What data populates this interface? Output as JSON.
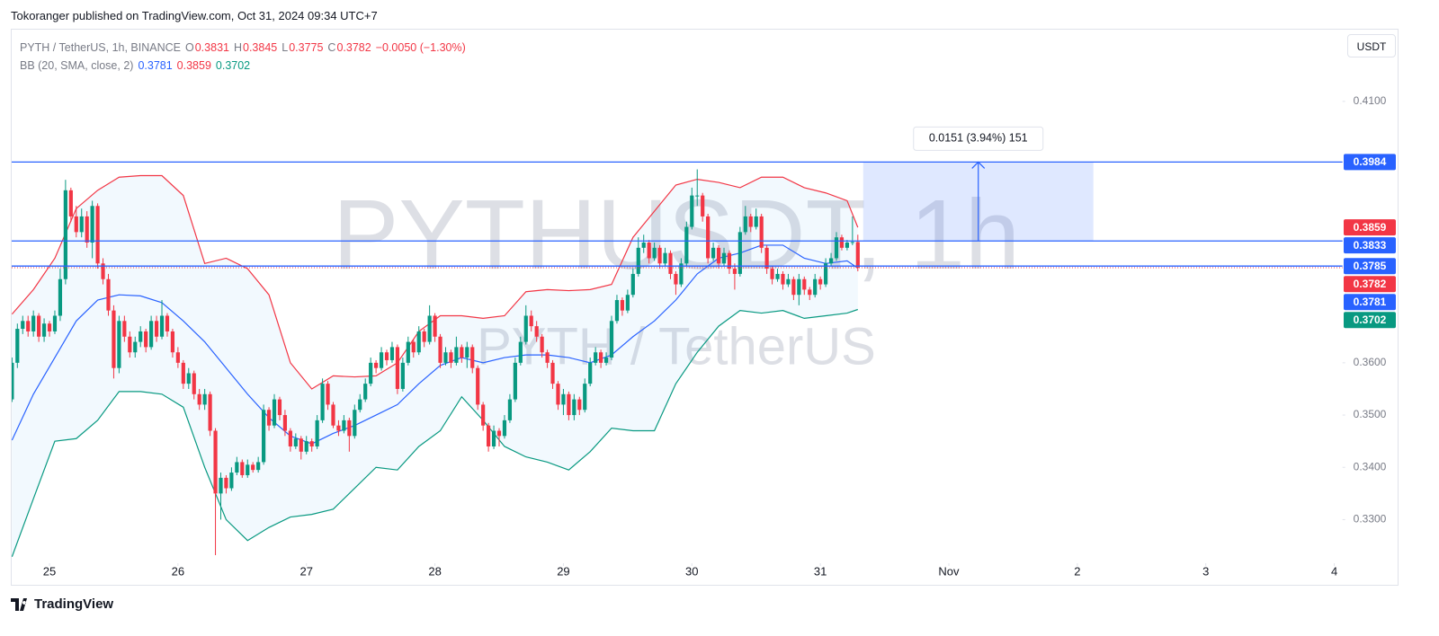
{
  "header": {
    "text": "Tokoranger published on TradingView.com, Oct 31, 2024 09:34 UTC+7"
  },
  "footer": {
    "brand": "TradingView"
  },
  "chart_data": {
    "type": "candlestick",
    "title": "PYTH / TetherUS, 1h, BINANCE",
    "watermark": "PYTHUSDT, 1h",
    "watermark_sub": "PYTH / TetherUS",
    "ohlc_labels": [
      "O",
      "H",
      "L",
      "C"
    ],
    "change": "−0.0050 (−1.30%)",
    "currency": "USDT",
    "up_color": "#089981",
    "down_color": "#f23645",
    "xlim": [
      -7.06,
      241.2
    ],
    "ylim": [
      0.322,
      0.4239
    ],
    "xticks": [
      {
        "value": 0,
        "label": "25"
      },
      {
        "value": 24,
        "label": "26"
      },
      {
        "value": 48,
        "label": "27"
      },
      {
        "value": 72,
        "label": "28"
      },
      {
        "value": 96,
        "label": "29"
      },
      {
        "value": 120,
        "label": "30"
      },
      {
        "value": 144,
        "label": "31"
      },
      {
        "value": 168,
        "label": "Nov"
      },
      {
        "value": 192,
        "label": "2"
      },
      {
        "value": 216,
        "label": "3"
      },
      {
        "value": 240,
        "label": "4"
      }
    ],
    "yticks": [
      {
        "value": 0.41,
        "label": "0.4100"
      },
      {
        "value": 0.36,
        "label": "0.3600"
      },
      {
        "value": 0.35,
        "label": "0.3500"
      },
      {
        "value": 0.34,
        "label": "0.3400"
      },
      {
        "value": 0.33,
        "label": "0.3300"
      }
    ],
    "x": [
      -7,
      -6,
      -5,
      -4,
      -3,
      -2,
      -1,
      0,
      1,
      2,
      3,
      4,
      5,
      6,
      7,
      8,
      9,
      10,
      11,
      12,
      13,
      14,
      15,
      16,
      17,
      18,
      19,
      20,
      21,
      22,
      23,
      24,
      25,
      26,
      27,
      28,
      29,
      30,
      31,
      32,
      33,
      34,
      35,
      36,
      37,
      38,
      39,
      40,
      41,
      42,
      43,
      44,
      45,
      46,
      47,
      48,
      49,
      50,
      51,
      52,
      53,
      54,
      55,
      56,
      57,
      58,
      59,
      60,
      61,
      62,
      63,
      64,
      65,
      66,
      67,
      68,
      69,
      70,
      71,
      72,
      73,
      74,
      75,
      76,
      77,
      78,
      79,
      80,
      81,
      82,
      83,
      84,
      85,
      86,
      87,
      88,
      89,
      90,
      91,
      92,
      93,
      94,
      95,
      96,
      97,
      98,
      99,
      100,
      101,
      102,
      103,
      104,
      105,
      106,
      107,
      108,
      109,
      110,
      111,
      112,
      113,
      114,
      115,
      116,
      117,
      118,
      119,
      120,
      121,
      122,
      123,
      124,
      125,
      126,
      127,
      128,
      129,
      130,
      131,
      132,
      133,
      134,
      135,
      136,
      137,
      138,
      139,
      140,
      141,
      142,
      143,
      144,
      145,
      146,
      147,
      148,
      149,
      150,
      151
    ],
    "candles": [
      [
        0.353,
        0.361,
        0.3525,
        0.36
      ],
      [
        0.36,
        0.3675,
        0.359,
        0.3665
      ],
      [
        0.3665,
        0.369,
        0.3655,
        0.368
      ],
      [
        0.368,
        0.369,
        0.365,
        0.366
      ],
      [
        0.366,
        0.37,
        0.365,
        0.369
      ],
      [
        0.369,
        0.3695,
        0.364,
        0.365
      ],
      [
        0.365,
        0.3685,
        0.364,
        0.3675
      ],
      [
        0.3675,
        0.368,
        0.365,
        0.366
      ],
      [
        0.366,
        0.37,
        0.3655,
        0.369
      ],
      [
        0.369,
        0.378,
        0.368,
        0.376
      ],
      [
        0.376,
        0.395,
        0.375,
        0.393
      ],
      [
        0.393,
        0.3935,
        0.387,
        0.388
      ],
      [
        0.388,
        0.39,
        0.384,
        0.385
      ],
      [
        0.385,
        0.3895,
        0.384,
        0.388
      ],
      [
        0.388,
        0.389,
        0.382,
        0.383
      ],
      [
        0.383,
        0.391,
        0.38,
        0.39
      ],
      [
        0.39,
        0.3905,
        0.378,
        0.379
      ],
      [
        0.379,
        0.38,
        0.375,
        0.376
      ],
      [
        0.376,
        0.377,
        0.369,
        0.37
      ],
      [
        0.37,
        0.371,
        0.357,
        0.359
      ],
      [
        0.359,
        0.369,
        0.358,
        0.368
      ],
      [
        0.368,
        0.369,
        0.364,
        0.365
      ],
      [
        0.365,
        0.366,
        0.361,
        0.362
      ],
      [
        0.362,
        0.365,
        0.361,
        0.364
      ],
      [
        0.364,
        0.367,
        0.363,
        0.366
      ],
      [
        0.366,
        0.3665,
        0.362,
        0.363
      ],
      [
        0.363,
        0.369,
        0.3625,
        0.368
      ],
      [
        0.368,
        0.369,
        0.364,
        0.365
      ],
      [
        0.365,
        0.372,
        0.3645,
        0.369
      ],
      [
        0.369,
        0.3695,
        0.365,
        0.366
      ],
      [
        0.366,
        0.3665,
        0.361,
        0.362
      ],
      [
        0.362,
        0.363,
        0.359,
        0.36
      ],
      [
        0.36,
        0.3605,
        0.355,
        0.356
      ],
      [
        0.356,
        0.359,
        0.355,
        0.358
      ],
      [
        0.358,
        0.3585,
        0.353,
        0.354
      ],
      [
        0.354,
        0.355,
        0.351,
        0.352
      ],
      [
        0.352,
        0.355,
        0.351,
        0.354
      ],
      [
        0.354,
        0.3545,
        0.346,
        0.347
      ],
      [
        0.347,
        0.3475,
        0.3232,
        0.335
      ],
      [
        0.335,
        0.339,
        0.33,
        0.338
      ],
      [
        0.338,
        0.3385,
        0.335,
        0.336
      ],
      [
        0.336,
        0.34,
        0.3355,
        0.339
      ],
      [
        0.339,
        0.342,
        0.3385,
        0.341
      ],
      [
        0.341,
        0.3415,
        0.338,
        0.3385
      ],
      [
        0.3385,
        0.3415,
        0.338,
        0.3405
      ],
      [
        0.3405,
        0.341,
        0.339,
        0.3395
      ],
      [
        0.3395,
        0.342,
        0.339,
        0.341
      ],
      [
        0.341,
        0.352,
        0.3405,
        0.351
      ],
      [
        0.351,
        0.3515,
        0.347,
        0.348
      ],
      [
        0.348,
        0.354,
        0.3475,
        0.353
      ],
      [
        0.353,
        0.3535,
        0.349,
        0.35
      ],
      [
        0.35,
        0.351,
        0.346,
        0.347
      ],
      [
        0.347,
        0.3475,
        0.343,
        0.344
      ],
      [
        0.344,
        0.3465,
        0.3435,
        0.3455
      ],
      [
        0.3455,
        0.346,
        0.3415,
        0.343
      ],
      [
        0.343,
        0.346,
        0.3425,
        0.345
      ],
      [
        0.345,
        0.3455,
        0.343,
        0.344
      ],
      [
        0.344,
        0.35,
        0.3435,
        0.349
      ],
      [
        0.349,
        0.357,
        0.3485,
        0.356
      ],
      [
        0.356,
        0.3565,
        0.351,
        0.352
      ],
      [
        0.352,
        0.3525,
        0.3475,
        0.348
      ],
      [
        0.348,
        0.349,
        0.346,
        0.347
      ],
      [
        0.347,
        0.35,
        0.3465,
        0.349
      ],
      [
        0.349,
        0.3495,
        0.343,
        0.346
      ],
      [
        0.346,
        0.352,
        0.3455,
        0.351
      ],
      [
        0.351,
        0.354,
        0.3505,
        0.353
      ],
      [
        0.353,
        0.357,
        0.3525,
        0.356
      ],
      [
        0.356,
        0.361,
        0.3555,
        0.36
      ],
      [
        0.36,
        0.3605,
        0.358,
        0.359
      ],
      [
        0.359,
        0.363,
        0.3585,
        0.362
      ],
      [
        0.362,
        0.3625,
        0.3595,
        0.3605
      ],
      [
        0.3605,
        0.364,
        0.36,
        0.363
      ],
      [
        0.363,
        0.3635,
        0.354,
        0.355
      ],
      [
        0.355,
        0.361,
        0.3545,
        0.36
      ],
      [
        0.36,
        0.365,
        0.3595,
        0.364
      ],
      [
        0.364,
        0.3645,
        0.361,
        0.362
      ],
      [
        0.362,
        0.367,
        0.3615,
        0.366
      ],
      [
        0.366,
        0.3665,
        0.363,
        0.364
      ],
      [
        0.364,
        0.371,
        0.3635,
        0.369
      ],
      [
        0.369,
        0.3695,
        0.364,
        0.365
      ],
      [
        0.365,
        0.3655,
        0.359,
        0.36
      ],
      [
        0.36,
        0.363,
        0.3595,
        0.362
      ],
      [
        0.362,
        0.3625,
        0.359,
        0.36
      ],
      [
        0.36,
        0.365,
        0.3595,
        0.363
      ],
      [
        0.363,
        0.3635,
        0.36,
        0.361
      ],
      [
        0.361,
        0.364,
        0.359,
        0.363
      ],
      [
        0.363,
        0.3635,
        0.358,
        0.359
      ],
      [
        0.359,
        0.3595,
        0.351,
        0.352
      ],
      [
        0.352,
        0.3525,
        0.347,
        0.348
      ],
      [
        0.348,
        0.3485,
        0.343,
        0.344
      ],
      [
        0.344,
        0.348,
        0.3435,
        0.347
      ],
      [
        0.347,
        0.3475,
        0.344,
        0.346
      ],
      [
        0.346,
        0.35,
        0.3455,
        0.349
      ],
      [
        0.349,
        0.354,
        0.3485,
        0.353
      ],
      [
        0.353,
        0.361,
        0.3525,
        0.36
      ],
      [
        0.36,
        0.365,
        0.3595,
        0.364
      ],
      [
        0.364,
        0.371,
        0.3635,
        0.369
      ],
      [
        0.369,
        0.37,
        0.366,
        0.367
      ],
      [
        0.367,
        0.368,
        0.364,
        0.365
      ],
      [
        0.365,
        0.3655,
        0.361,
        0.362
      ],
      [
        0.362,
        0.3625,
        0.359,
        0.36
      ],
      [
        0.36,
        0.3605,
        0.355,
        0.356
      ],
      [
        0.356,
        0.3565,
        0.351,
        0.352
      ],
      [
        0.352,
        0.355,
        0.35,
        0.354
      ],
      [
        0.354,
        0.3545,
        0.349,
        0.35
      ],
      [
        0.35,
        0.354,
        0.349,
        0.353
      ],
      [
        0.353,
        0.3535,
        0.35,
        0.351
      ],
      [
        0.351,
        0.357,
        0.3505,
        0.356
      ],
      [
        0.356,
        0.361,
        0.3555,
        0.36
      ],
      [
        0.36,
        0.363,
        0.3595,
        0.362
      ],
      [
        0.362,
        0.3625,
        0.359,
        0.36
      ],
      [
        0.36,
        0.362,
        0.3595,
        0.361
      ],
      [
        0.361,
        0.369,
        0.3605,
        0.368
      ],
      [
        0.368,
        0.373,
        0.3675,
        0.372
      ],
      [
        0.372,
        0.3725,
        0.369,
        0.37
      ],
      [
        0.37,
        0.374,
        0.3695,
        0.373
      ],
      [
        0.373,
        0.378,
        0.3725,
        0.377
      ],
      [
        0.377,
        0.384,
        0.3765,
        0.382
      ],
      [
        0.382,
        0.3845,
        0.381,
        0.383
      ],
      [
        0.383,
        0.3835,
        0.379,
        0.38
      ],
      [
        0.38,
        0.383,
        0.3795,
        0.382
      ],
      [
        0.382,
        0.3825,
        0.378,
        0.379
      ],
      [
        0.379,
        0.382,
        0.3785,
        0.381
      ],
      [
        0.381,
        0.3815,
        0.376,
        0.377
      ],
      [
        0.377,
        0.3775,
        0.373,
        0.375
      ],
      [
        0.375,
        0.38,
        0.3745,
        0.379
      ],
      [
        0.379,
        0.387,
        0.3785,
        0.386
      ],
      [
        0.386,
        0.3935,
        0.3855,
        0.392
      ],
      [
        0.392,
        0.397,
        0.39,
        0.392
      ],
      [
        0.392,
        0.3925,
        0.387,
        0.388
      ],
      [
        0.388,
        0.3885,
        0.379,
        0.38
      ],
      [
        0.38,
        0.383,
        0.3795,
        0.382
      ],
      [
        0.382,
        0.3825,
        0.378,
        0.379
      ],
      [
        0.379,
        0.382,
        0.3785,
        0.381
      ],
      [
        0.381,
        0.3815,
        0.377,
        0.378
      ],
      [
        0.378,
        0.379,
        0.374,
        0.377
      ],
      [
        0.377,
        0.386,
        0.3765,
        0.385
      ],
      [
        0.385,
        0.39,
        0.3845,
        0.388
      ],
      [
        0.388,
        0.3885,
        0.385,
        0.386
      ],
      [
        0.386,
        0.3895,
        0.3855,
        0.388
      ],
      [
        0.388,
        0.3885,
        0.381,
        0.382
      ],
      [
        0.382,
        0.3825,
        0.377,
        0.378
      ],
      [
        0.378,
        0.3785,
        0.375,
        0.376
      ],
      [
        0.376,
        0.378,
        0.3755,
        0.377
      ],
      [
        0.377,
        0.3775,
        0.374,
        0.375
      ],
      [
        0.375,
        0.377,
        0.3745,
        0.376
      ],
      [
        0.376,
        0.3765,
        0.372,
        0.373
      ],
      [
        0.373,
        0.377,
        0.371,
        0.376
      ],
      [
        0.376,
        0.3765,
        0.373,
        0.374
      ],
      [
        0.374,
        0.3745,
        0.372,
        0.373
      ],
      [
        0.373,
        0.377,
        0.3725,
        0.376
      ],
      [
        0.376,
        0.3765,
        0.374,
        0.375
      ],
      [
        0.375,
        0.38,
        0.3745,
        0.379
      ],
      [
        0.379,
        0.381,
        0.3785,
        0.38
      ],
      [
        0.38,
        0.385,
        0.3795,
        0.384
      ],
      [
        0.384,
        0.3845,
        0.3815,
        0.382
      ],
      [
        0.382,
        0.3835,
        0.3815,
        0.383
      ],
      [
        0.383,
        0.388,
        0.3825,
        0.3831
      ],
      [
        0.3831,
        0.3845,
        0.3775,
        0.3782
      ]
    ],
    "indicator": {
      "name": "BB (20, SMA, close, 2)",
      "fill": "rgba(33,150,243,0.06)",
      "x": [
        -7,
        -3,
        1,
        5,
        9,
        13,
        17,
        21,
        25,
        29,
        33,
        37,
        41,
        45,
        49,
        53,
        57,
        61,
        65,
        69,
        73,
        77,
        81,
        85,
        89,
        93,
        97,
        101,
        105,
        109,
        113,
        117,
        121,
        125,
        129,
        133,
        137,
        141,
        145,
        149,
        151
      ],
      "middle": {
        "color": "#2962ff",
        "values": [
          0.3452,
          0.354,
          0.361,
          0.368,
          0.372,
          0.373,
          0.3728,
          0.3715,
          0.368,
          0.364,
          0.359,
          0.354,
          0.3495,
          0.346,
          0.3445,
          0.3465,
          0.348,
          0.35,
          0.352,
          0.356,
          0.3595,
          0.361,
          0.36,
          0.361,
          0.3615,
          0.3615,
          0.361,
          0.36,
          0.3615,
          0.365,
          0.368,
          0.372,
          0.377,
          0.38,
          0.381,
          0.3825,
          0.3825,
          0.38,
          0.379,
          0.3795,
          0.3781
        ]
      },
      "upper": {
        "color": "#f23645",
        "values": [
          0.3693,
          0.374,
          0.38,
          0.3895,
          0.393,
          0.3955,
          0.3958,
          0.3958,
          0.392,
          0.379,
          0.38,
          0.378,
          0.373,
          0.36,
          0.355,
          0.3575,
          0.3573,
          0.3575,
          0.36,
          0.366,
          0.369,
          0.369,
          0.3685,
          0.369,
          0.3736,
          0.374,
          0.3738,
          0.374,
          0.375,
          0.384,
          0.389,
          0.394,
          0.3951,
          0.3945,
          0.3935,
          0.3955,
          0.3955,
          0.3935,
          0.3925,
          0.391,
          0.3859
        ]
      },
      "lower": {
        "color": "#089981",
        "values": [
          0.3229,
          0.334,
          0.345,
          0.3455,
          0.349,
          0.3545,
          0.3545,
          0.354,
          0.3515,
          0.34,
          0.33,
          0.326,
          0.3285,
          0.3305,
          0.331,
          0.332,
          0.336,
          0.34,
          0.3395,
          0.344,
          0.347,
          0.3535,
          0.349,
          0.344,
          0.342,
          0.341,
          0.3395,
          0.343,
          0.3475,
          0.347,
          0.347,
          0.356,
          0.362,
          0.367,
          0.37,
          0.3695,
          0.37,
          0.3685,
          0.369,
          0.3695,
          0.3702
        ]
      }
    },
    "hlines": {
      "color": "#2962ff",
      "values": [
        0.3984,
        0.3833,
        0.3785
      ]
    },
    "measure": {
      "label": "0.0151 (3.94%) 151",
      "x": [
        152,
        195
      ]
    }
  }
}
